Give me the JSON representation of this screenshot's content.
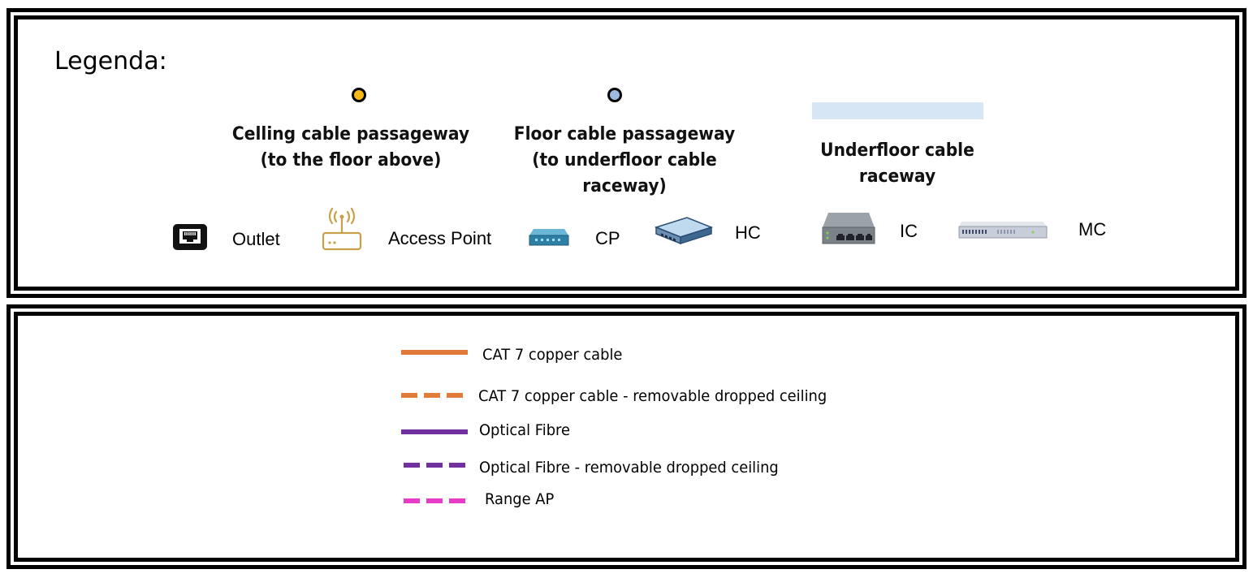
{
  "legend": {
    "title": "Legenda:",
    "passageways": [
      {
        "label_line1": "Celling cable passageway",
        "label_line2": "(to the floor above)",
        "color": "#F5B918"
      },
      {
        "label_line1": "Floor cable passageway",
        "label_line2": "(to underfloor cable raceway)",
        "color": "#9DB9DE"
      }
    ],
    "raceway": {
      "label": "Underfloor cable raceway",
      "color": "#D6E6F5"
    },
    "devices": [
      {
        "label": "Outlet",
        "icon": "ethernet-outlet-icon"
      },
      {
        "label": "Access Point",
        "icon": "access-point-icon"
      },
      {
        "label": "CP",
        "icon": "consolidation-point-icon"
      },
      {
        "label": "HC",
        "icon": "horizontal-crossconnect-switch-icon"
      },
      {
        "label": "IC",
        "icon": "intermediate-crossconnect-switch-icon"
      },
      {
        "label": "MC",
        "icon": "main-crossconnect-rack-icon"
      }
    ],
    "cables": [
      {
        "label": "CAT 7 copper cable",
        "color": "#E07B39",
        "style": "solid"
      },
      {
        "label": "CAT 7 copper cable - removable dropped ceiling",
        "color": "#E07B39",
        "style": "dashed"
      },
      {
        "label": "Optical Fibre",
        "color": "#7030A0",
        "style": "solid"
      },
      {
        "label": "Optical Fibre - removable dropped ceiling",
        "color": "#7030A0",
        "style": "dashed"
      },
      {
        "label": "Range AP",
        "color": "#E83CC8",
        "style": "dashed"
      }
    ]
  }
}
